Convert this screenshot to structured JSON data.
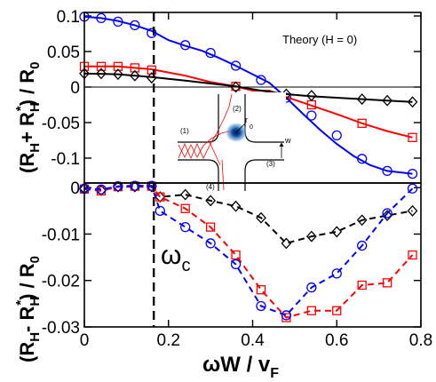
{
  "chart_data": [
    {
      "type": "line",
      "panel": "top",
      "ylabel_parts": [
        "(R",
        "H",
        "+ R",
        "H",
        "*",
        ") / R",
        "0"
      ],
      "annotation": "Theory (H = 0)",
      "ylim": [
        -0.135,
        0.105
      ],
      "yticks": [
        "0.1",
        "0.05",
        "0",
        "-0.05",
        "-0.1"
      ],
      "ytick_values": [
        0.1,
        0.05,
        0,
        -0.05,
        -0.1
      ],
      "series": [
        {
          "color": "#0000ff",
          "marker": "circle",
          "dashed": false,
          "markers": [
            [
              0,
              0.099
            ],
            [
              0.04,
              0.097
            ],
            [
              0.08,
              0.092
            ],
            [
              0.12,
              0.087
            ],
            [
              0.16,
              0.076
            ],
            [
              0.24,
              0.059
            ],
            [
              0.3,
              0.048
            ],
            [
              0.36,
              0.03
            ],
            [
              0.42,
              0.01
            ],
            [
              0.48,
              -0.015
            ],
            [
              0.54,
              -0.04
            ],
            [
              0.6,
              -0.068
            ],
            [
              0.66,
              -0.101
            ],
            [
              0.72,
              -0.118
            ],
            [
              0.78,
              -0.122
            ]
          ],
          "curve": [
            [
              0,
              0.099
            ],
            [
              0.04,
              0.097
            ],
            [
              0.08,
              0.093
            ],
            [
              0.12,
              0.087
            ],
            [
              0.16,
              0.079
            ],
            [
              0.2,
              0.066
            ],
            [
              0.24,
              0.058
            ],
            [
              0.28,
              0.051
            ],
            [
              0.32,
              0.041
            ],
            [
              0.36,
              0.03
            ],
            [
              0.4,
              0.018
            ],
            [
              0.44,
              0.006
            ],
            [
              0.48,
              -0.015
            ],
            [
              0.52,
              -0.038
            ],
            [
              0.56,
              -0.06
            ],
            [
              0.6,
              -0.08
            ],
            [
              0.64,
              -0.097
            ],
            [
              0.68,
              -0.11
            ],
            [
              0.72,
              -0.118
            ],
            [
              0.78,
              -0.122
            ]
          ]
        },
        {
          "color": "#ff0000",
          "marker": "square",
          "dashed": false,
          "markers": [
            [
              0,
              0.029
            ],
            [
              0.04,
              0.029
            ],
            [
              0.08,
              0.029
            ],
            [
              0.12,
              0.027
            ],
            [
              0.16,
              0.024
            ],
            [
              0.36,
              0.001
            ],
            [
              0.54,
              -0.025
            ],
            [
              0.66,
              -0.051
            ],
            [
              0.78,
              -0.071
            ]
          ],
          "curve": [
            [
              0,
              0.029
            ],
            [
              0.08,
              0.029
            ],
            [
              0.16,
              0.025
            ],
            [
              0.24,
              0.016
            ],
            [
              0.3,
              0.007
            ],
            [
              0.36,
              0.001
            ],
            [
              0.4,
              -0.005
            ],
            [
              0.44,
              -0.005
            ],
            [
              0.48,
              -0.014
            ],
            [
              0.54,
              -0.026
            ],
            [
              0.6,
              -0.038
            ],
            [
              0.66,
              -0.051
            ],
            [
              0.72,
              -0.062
            ],
            [
              0.78,
              -0.071
            ]
          ]
        },
        {
          "color": "#000000",
          "marker": "diamond",
          "dashed": false,
          "markers": [
            [
              0,
              0.019
            ],
            [
              0.04,
              0.019
            ],
            [
              0.08,
              0.018
            ],
            [
              0.12,
              0.016
            ],
            [
              0.16,
              0.013
            ],
            [
              0.36,
              0.0
            ],
            [
              0.48,
              -0.01
            ],
            [
              0.54,
              -0.012
            ],
            [
              0.66,
              -0.017
            ],
            [
              0.72,
              -0.019
            ],
            [
              0.78,
              -0.021
            ]
          ],
          "curve": [
            [
              0,
              0.019
            ],
            [
              0.08,
              0.018
            ],
            [
              0.16,
              0.014
            ],
            [
              0.24,
              0.009
            ],
            [
              0.3,
              0.005
            ],
            [
              0.36,
              0.001
            ],
            [
              0.42,
              -0.005
            ],
            [
              0.48,
              -0.01
            ],
            [
              0.54,
              -0.013
            ],
            [
              0.6,
              -0.015
            ],
            [
              0.66,
              -0.017
            ],
            [
              0.72,
              -0.019
            ],
            [
              0.78,
              -0.021
            ]
          ]
        }
      ]
    },
    {
      "type": "line",
      "panel": "bottom",
      "ylabel_parts": [
        "(R",
        "H",
        "- R",
        "H",
        "*",
        ") / R",
        "0"
      ],
      "xlabel_parts": [
        "ωW / v",
        "F"
      ],
      "xlim": [
        0,
        0.8
      ],
      "xticks": [
        "0",
        "0.2",
        "0.4",
        "0.6",
        "0.8"
      ],
      "xtick_values": [
        0,
        0.2,
        0.4,
        0.6,
        0.8
      ],
      "ylim": [
        -0.03,
        0.001
      ],
      "yticks": [
        "0",
        "-0.01",
        "-0.02",
        "-0.03"
      ],
      "ytick_values": [
        0,
        -0.01,
        -0.02,
        -0.03
      ],
      "series": [
        {
          "color": "#000000",
          "marker": "diamond",
          "dashed": true,
          "markers": [
            [
              0,
              -0.0002
            ],
            [
              0.04,
              -0.0006
            ],
            [
              0.08,
              0.0002
            ],
            [
              0.12,
              0.0002
            ],
            [
              0.16,
              0.0002
            ],
            [
              0.18,
              -0.002
            ],
            [
              0.24,
              -0.0015
            ],
            [
              0.3,
              -0.0028
            ],
            [
              0.36,
              -0.004
            ],
            [
              0.42,
              -0.0065
            ],
            [
              0.48,
              -0.012
            ],
            [
              0.54,
              -0.0105
            ],
            [
              0.6,
              -0.0095
            ],
            [
              0.66,
              -0.007
            ],
            [
              0.72,
              -0.006
            ],
            [
              0.78,
              -0.005
            ]
          ]
        },
        {
          "color": "#ff0000",
          "marker": "square",
          "dashed": true,
          "markers": [
            [
              0,
              -0.0003
            ],
            [
              0.04,
              -0.0007
            ],
            [
              0.08,
              0.0002
            ],
            [
              0.12,
              0.0003
            ],
            [
              0.16,
              0.0003
            ],
            [
              0.18,
              -0.002
            ],
            [
              0.24,
              -0.0045
            ],
            [
              0.3,
              -0.0085
            ],
            [
              0.36,
              -0.0145
            ],
            [
              0.42,
              -0.022
            ],
            [
              0.48,
              -0.028
            ],
            [
              0.54,
              -0.0265
            ],
            [
              0.6,
              -0.0265
            ],
            [
              0.66,
              -0.021
            ],
            [
              0.72,
              -0.0205
            ],
            [
              0.78,
              -0.0145
            ]
          ]
        },
        {
          "color": "#0000ff",
          "marker": "circle",
          "dashed": true,
          "markers": [
            [
              0,
              -0.0002
            ],
            [
              0.04,
              -0.0004
            ],
            [
              0.08,
              0.0003
            ],
            [
              0.12,
              0.0004
            ],
            [
              0.16,
              0.0004
            ],
            [
              0.18,
              -0.005
            ],
            [
              0.24,
              -0.0085
            ],
            [
              0.3,
              -0.012
            ],
            [
              0.36,
              -0.0165
            ],
            [
              0.42,
              -0.0255
            ],
            [
              0.48,
              -0.0275
            ],
            [
              0.54,
              -0.0215
            ],
            [
              0.6,
              -0.0185
            ],
            [
              0.66,
              -0.0125
            ],
            [
              0.72,
              -0.0055
            ],
            [
              0.78,
              -0.0002
            ]
          ]
        }
      ]
    }
  ],
  "omega_c": {
    "label_main": "ω",
    "label_sub": "c",
    "x": 0.165
  },
  "inset": {
    "labels": {
      "lead1": "(1)",
      "lead2": "(2)",
      "lead3": "(3)",
      "lead4": "(4)",
      "r": "r",
      "r_sub": "0",
      "w": "w"
    },
    "colors": {
      "arrows": "#ff0000",
      "walls": "#000000",
      "spot": "#0b4fa0"
    }
  }
}
